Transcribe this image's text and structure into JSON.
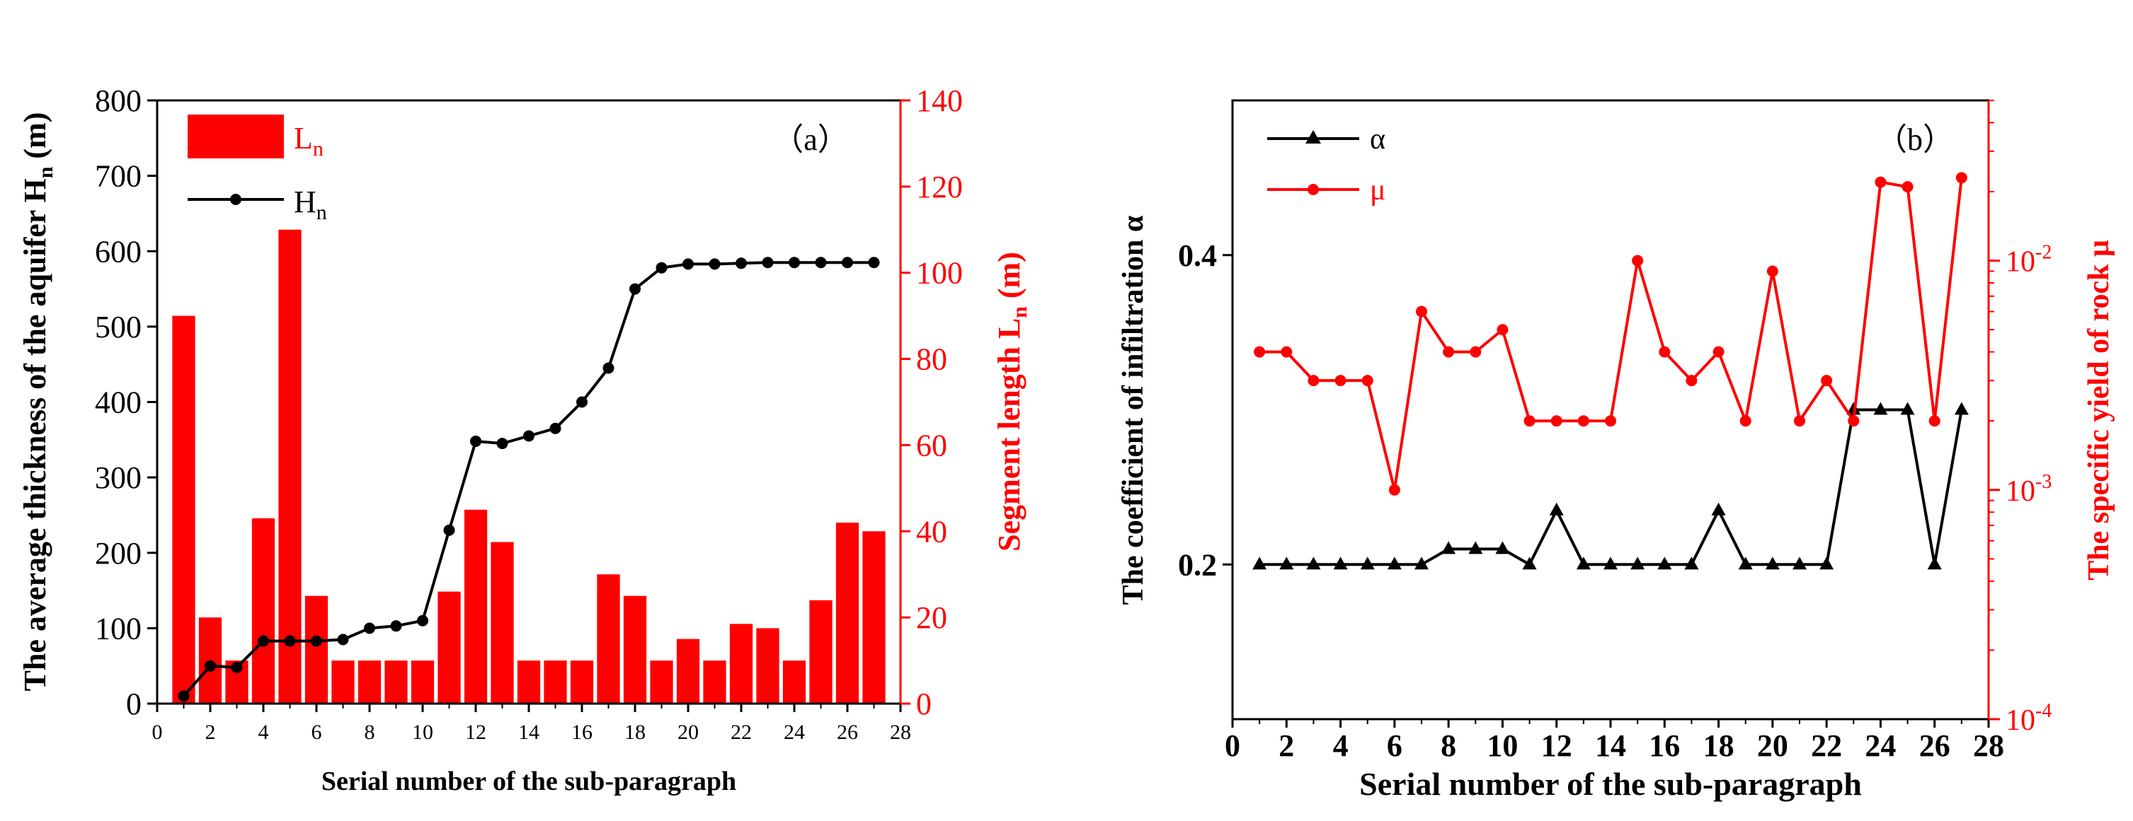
{
  "chart_data": [
    {
      "panel_label": "（a）",
      "type": "bar+line",
      "xlabel": "Serial number of the sub-paragraph",
      "ylabel_left": "The average thickness of the aquifer H_n (m)",
      "ylabel_left_text": "The average thickness of the aquifer H",
      "ylabel_left_sub": "n",
      "ylabel_left_suffix": " (m)",
      "ylabel_right_text": "Segment  length  L",
      "ylabel_right_sub": "n",
      "ylabel_right_suffix": "  (m)",
      "xlim": [
        0,
        28
      ],
      "ylim_left": [
        0,
        800
      ],
      "ylim_right": [
        0,
        140
      ],
      "xticks": [
        0,
        2,
        4,
        6,
        8,
        10,
        12,
        14,
        16,
        18,
        20,
        22,
        24,
        26,
        28
      ],
      "yticks_left": [
        0,
        100,
        200,
        300,
        400,
        500,
        600,
        700,
        800
      ],
      "yticks_right": [
        0,
        20,
        40,
        60,
        80,
        100,
        120,
        140
      ],
      "x": [
        1,
        2,
        3,
        4,
        5,
        6,
        7,
        8,
        9,
        10,
        11,
        12,
        13,
        14,
        15,
        16,
        17,
        18,
        19,
        20,
        21,
        22,
        23,
        24,
        25,
        26,
        27
      ],
      "series": [
        {
          "name": "L_n",
          "legend_text": "L",
          "legend_sub": "n",
          "kind": "bar",
          "axis": "right",
          "color": "#ff0000",
          "values": [
            90,
            20,
            10,
            43,
            110,
            25,
            10,
            10,
            10,
            10,
            26,
            45,
            37.5,
            10,
            10,
            10,
            30,
            25,
            10,
            15,
            10,
            18.5,
            17.5,
            10,
            24,
            42,
            40
          ]
        },
        {
          "name": "H_n",
          "legend_text": "H",
          "legend_sub": "n",
          "kind": "line",
          "axis": "left",
          "color": "#000000",
          "values": [
            10,
            50,
            48,
            83,
            83,
            83,
            85,
            100,
            103,
            110,
            230,
            348,
            345,
            355,
            365,
            400,
            445,
            550,
            578,
            583,
            583,
            584,
            585,
            585,
            585,
            585,
            585
          ]
        }
      ],
      "legend_position": "top-left"
    },
    {
      "panel_label": "（b）",
      "type": "line",
      "xlabel": "Serial number of the sub-paragraph",
      "ylabel_left": "The  coefficient  of  infiltration α",
      "ylabel_right": "The  specific  yield  of  rock  μ",
      "xlim": [
        0,
        28
      ],
      "ylim_left": [
        0.1,
        0.5
      ],
      "ylim_right": [
        0.0001,
        0.05
      ],
      "right_scale": "log",
      "xticks": [
        0,
        2,
        4,
        6,
        8,
        10,
        12,
        14,
        16,
        18,
        20,
        22,
        24,
        26,
        28
      ],
      "yticks_left": [
        "0.2",
        "0.4"
      ],
      "yticks_left_values": [
        0.2,
        0.4
      ],
      "yticks_right": [
        {
          "base": "10",
          "exp": "-4",
          "value": 0.0001
        },
        {
          "base": "10",
          "exp": "-3",
          "value": 0.001
        },
        {
          "base": "10",
          "exp": "-2",
          "value": 0.01
        }
      ],
      "x": [
        1,
        2,
        3,
        4,
        5,
        6,
        7,
        8,
        9,
        10,
        11,
        12,
        13,
        14,
        15,
        16,
        17,
        18,
        19,
        20,
        21,
        22,
        23,
        24,
        25,
        26,
        27
      ],
      "series": [
        {
          "name": "α",
          "axis": "left",
          "marker": "triangle",
          "color": "#000000",
          "values": [
            0.2,
            0.2,
            0.2,
            0.2,
            0.2,
            0.2,
            0.2,
            0.21,
            0.21,
            0.21,
            0.2,
            0.235,
            0.2,
            0.2,
            0.2,
            0.2,
            0.2,
            0.235,
            0.2,
            0.2,
            0.2,
            0.2,
            0.3,
            0.3,
            0.3,
            0.2,
            0.3
          ]
        },
        {
          "name": "μ",
          "axis": "right",
          "marker": "circle",
          "color": "#ff0000",
          "values": [
            0.004,
            0.004,
            0.003,
            0.003,
            0.003,
            0.001,
            0.006,
            0.004,
            0.004,
            0.005,
            0.002,
            0.002,
            0.002,
            0.002,
            0.01,
            0.004,
            0.003,
            0.004,
            0.002,
            0.009,
            0.002,
            0.003,
            0.002,
            0.022,
            0.021,
            0.002,
            0.023
          ]
        }
      ],
      "legend_position": "top-left"
    }
  ]
}
